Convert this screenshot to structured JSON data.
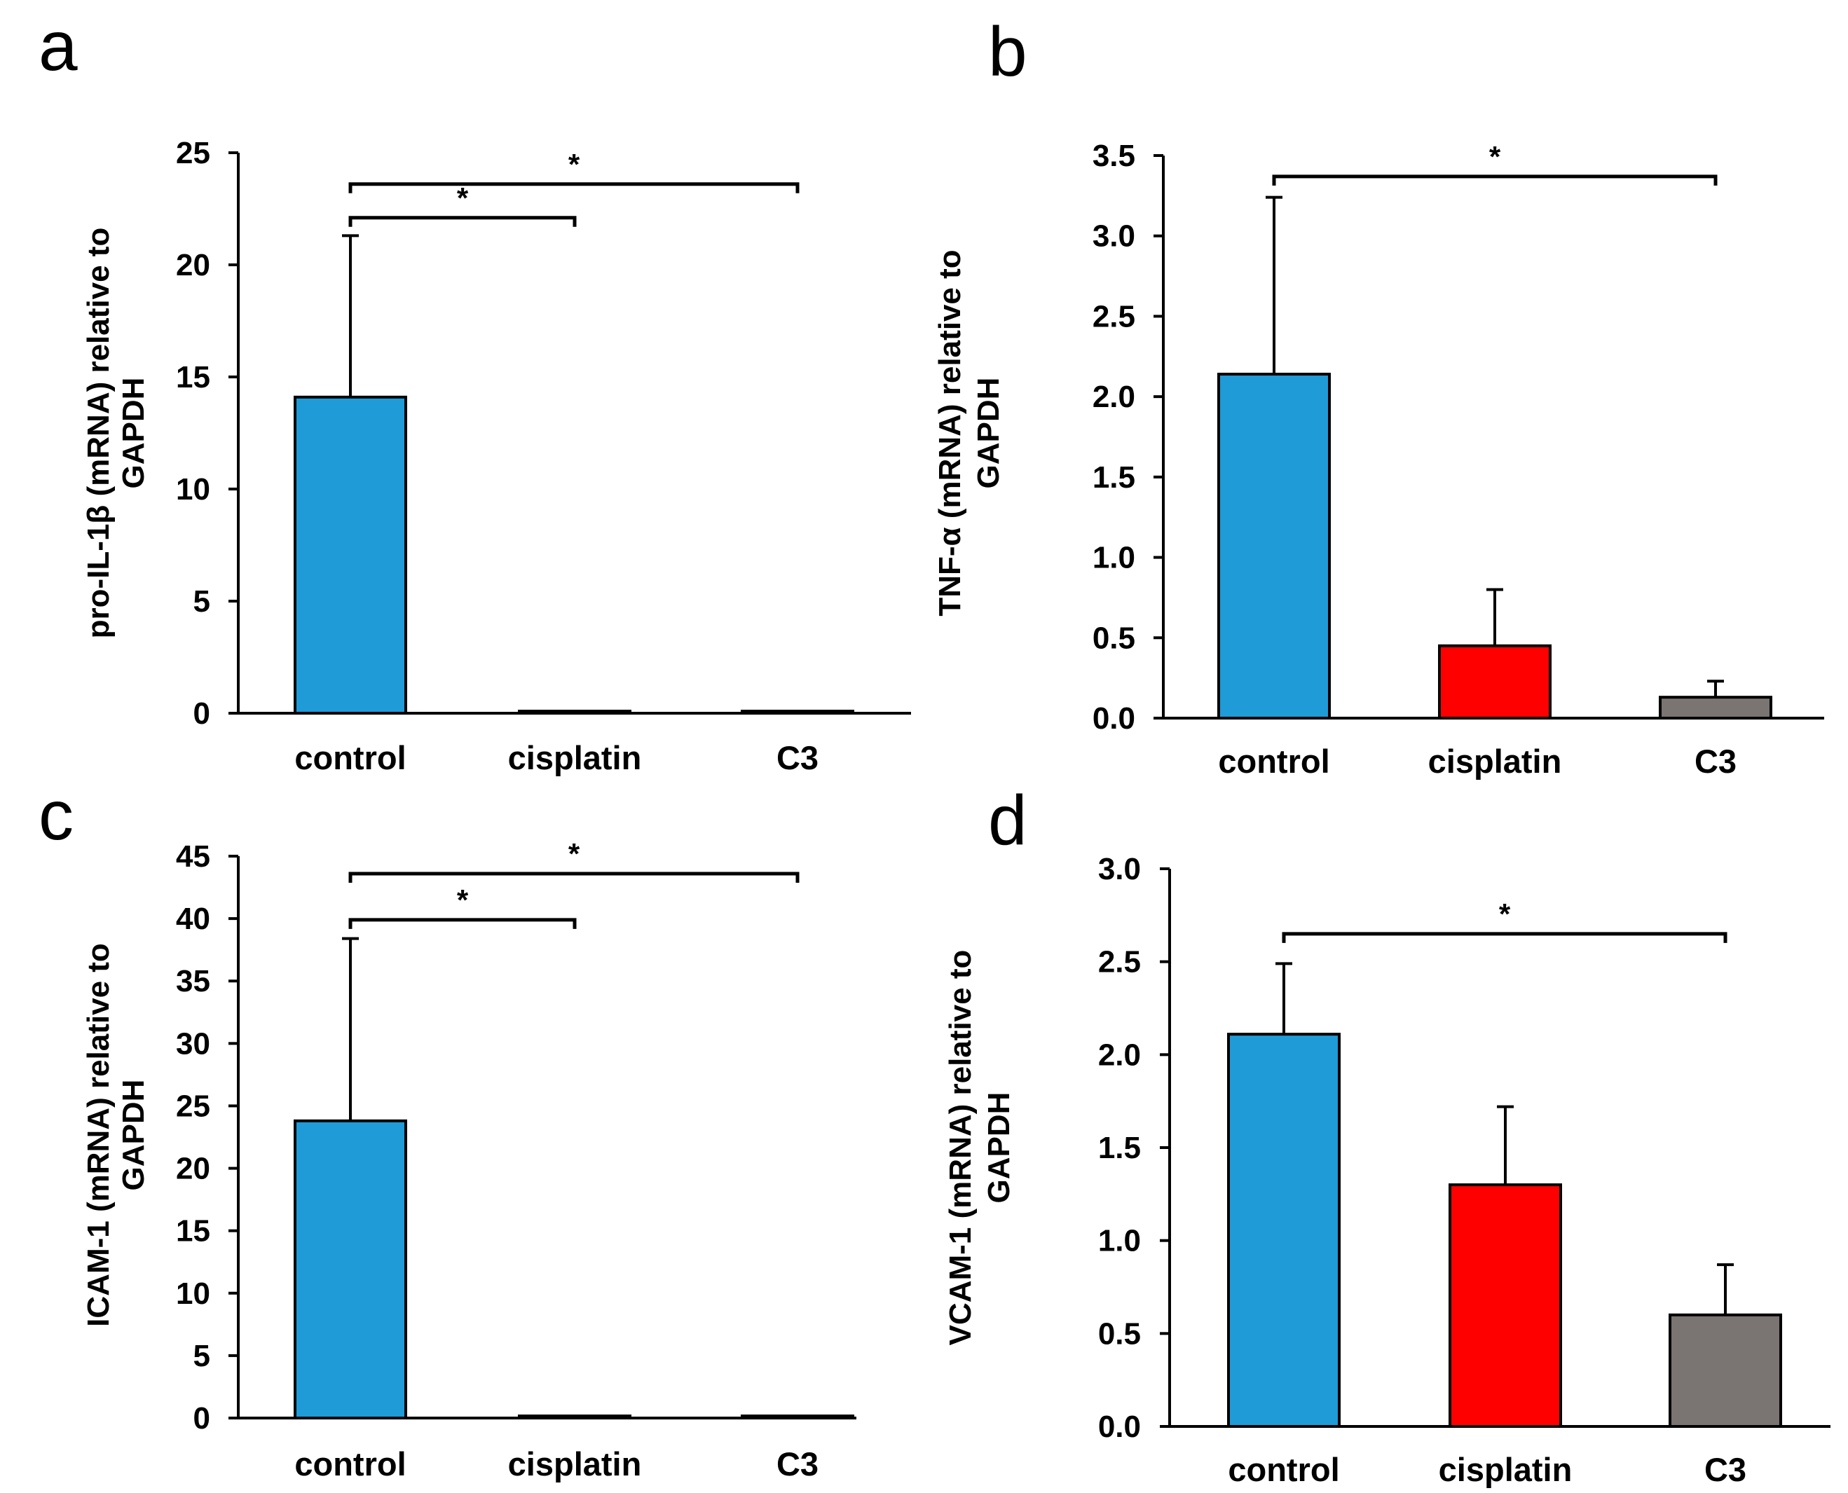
{
  "chart_data": [
    {
      "type": "bar",
      "panel_label": "a",
      "categories": [
        "control",
        "cisplatin",
        "C3"
      ],
      "values": [
        14.1,
        0.05,
        0.05
      ],
      "errors": [
        7.2,
        0,
        0
      ],
      "colors": [
        "#1f9bd8",
        "#1f9bd8",
        "#1f9bd8"
      ],
      "ylabel_lines": [
        "pro-IL-1β (mRNA) relative to",
        "GAPDH"
      ],
      "ylim": [
        0,
        25
      ],
      "yticks": [
        "0",
        "5",
        "10",
        "15",
        "20",
        "25"
      ],
      "yticks_values": [
        0,
        5,
        10,
        15,
        20,
        25
      ],
      "significance": [
        {
          "from": 0,
          "to": 1,
          "at": 22.1,
          "label": "*"
        },
        {
          "from": 0,
          "to": 2,
          "at": 23.6,
          "label": "*"
        }
      ]
    },
    {
      "type": "bar",
      "panel_label": "b",
      "categories": [
        "control",
        "cisplatin",
        "C3"
      ],
      "values": [
        2.14,
        0.45,
        0.13
      ],
      "errors": [
        1.1,
        0.35,
        0.1
      ],
      "colors": [
        "#1f9bd8",
        "#ff0000",
        "#7a7472"
      ],
      "ylabel_lines": [
        "TNF-α (mRNA) relative to",
        "GAPDH"
      ],
      "ylim": [
        0,
        3.5
      ],
      "yticks": [
        "0.0",
        "0.5",
        "1.0",
        "1.5",
        "2.0",
        "2.5",
        "3.0",
        "3.5"
      ],
      "yticks_values": [
        0,
        0.5,
        1.0,
        1.5,
        2.0,
        2.5,
        3.0,
        3.5
      ],
      "significance": [
        {
          "from": 0,
          "to": 2,
          "at": 3.37,
          "label": "*"
        }
      ]
    },
    {
      "type": "bar",
      "panel_label": "c",
      "categories": [
        "control",
        "cisplatin",
        "C3"
      ],
      "values": [
        23.8,
        0.1,
        0.1
      ],
      "errors": [
        14.6,
        0,
        0
      ],
      "colors": [
        "#1f9bd8",
        "#1f9bd8",
        "#1f9bd8"
      ],
      "ylabel_lines": [
        "ICAM-1 (mRNA) relative to",
        "GAPDH"
      ],
      "ylim": [
        0,
        45
      ],
      "yticks": [
        "0",
        "5",
        "10",
        "15",
        "20",
        "25",
        "30",
        "35",
        "40",
        "45"
      ],
      "yticks_values": [
        0,
        5,
        10,
        15,
        20,
        25,
        30,
        35,
        40,
        45
      ],
      "significance": [
        {
          "from": 0,
          "to": 1,
          "at": 39.9,
          "label": "*"
        },
        {
          "from": 0,
          "to": 2,
          "at": 43.6,
          "label": "*"
        }
      ]
    },
    {
      "type": "bar",
      "panel_label": "d",
      "categories": [
        "control",
        "cisplatin",
        "C3"
      ],
      "values": [
        2.11,
        1.3,
        0.6
      ],
      "errors": [
        0.38,
        0.42,
        0.27
      ],
      "colors": [
        "#1f9bd8",
        "#ff0000",
        "#7a7472"
      ],
      "ylabel_lines": [
        "VCAM-1 (mRNA) relative to",
        "GAPDH"
      ],
      "ylim": [
        0,
        3.0
      ],
      "yticks": [
        "0.0",
        "0.5",
        "1.0",
        "1.5",
        "2.0",
        "2.5",
        "3.0"
      ],
      "yticks_values": [
        0,
        0.5,
        1.0,
        1.5,
        2.0,
        2.5,
        3.0
      ],
      "significance": [
        {
          "from": 0,
          "to": 2,
          "at": 2.65,
          "label": "*"
        }
      ]
    }
  ]
}
